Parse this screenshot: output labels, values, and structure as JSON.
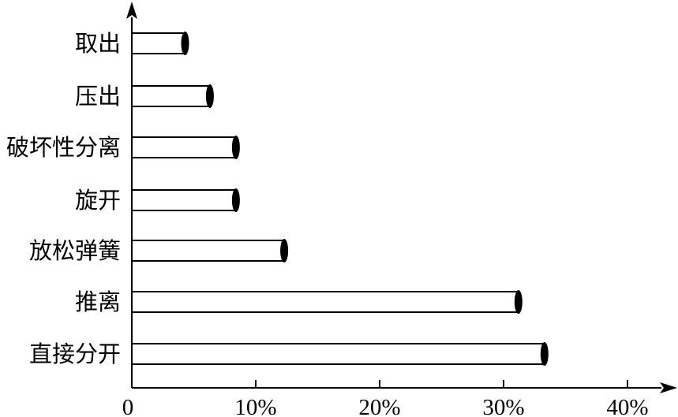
{
  "chart_data": {
    "type": "bar",
    "orientation": "horizontal",
    "categories": [
      "取出",
      "压出",
      "破坏性分离",
      "旋开",
      "放松弹簧",
      "推离",
      "直接分开"
    ],
    "values": [
      4.3,
      6.3,
      8.4,
      8.4,
      12.3,
      31.2,
      33.3
    ],
    "unit": "%",
    "xlim": [
      0,
      40
    ],
    "x_ticks": [
      "0",
      "10%",
      "20%",
      "30%",
      "40%"
    ],
    "grid": false,
    "legend": "none",
    "title": "",
    "xlabel": "",
    "ylabel": "",
    "bar_color": "#ffffff",
    "cap_color": "#000000"
  }
}
